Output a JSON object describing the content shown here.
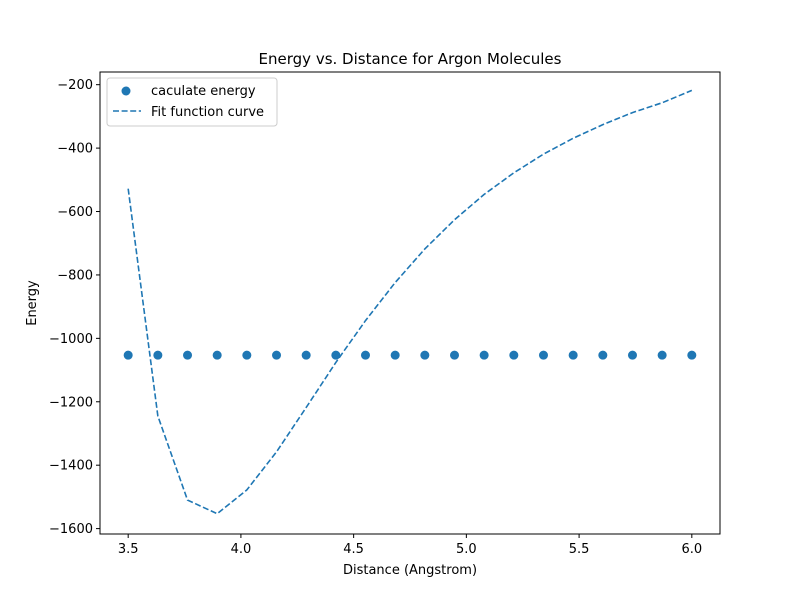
{
  "chart_data": {
    "type": "scatter",
    "title": "Energy vs. Distance for Argon Molecules",
    "xlabel": "Distance (Angstrom)",
    "ylabel": "Energy",
    "xlim": [
      3.375,
      6.125
    ],
    "ylim": [
      -1617,
      -160
    ],
    "xticks": [
      3.5,
      4.0,
      4.5,
      5.0,
      5.5,
      6.0
    ],
    "xtick_labels": [
      "3.5",
      "4.0",
      "4.5",
      "5.0",
      "5.5",
      "6.0"
    ],
    "yticks": [
      -1600,
      -1400,
      -1200,
      -1000,
      -800,
      -600,
      -400,
      -200
    ],
    "ytick_labels": [
      "−1600",
      "−1400",
      "−1200",
      "−1000",
      "−800",
      "−600",
      "−400",
      "−200"
    ],
    "grid": false,
    "legend": "top-left",
    "colors": {
      "series": "#1f77b4"
    },
    "series": [
      {
        "name": "caculate energy",
        "kind": "scatter",
        "x": [
          3.5,
          3.6316,
          3.7632,
          3.8947,
          4.0263,
          4.1579,
          4.2895,
          4.4211,
          4.5526,
          4.6842,
          4.8158,
          4.9474,
          5.0789,
          5.2105,
          5.3421,
          5.4737,
          5.6053,
          5.7368,
          5.8684,
          6.0
        ],
        "y": [
          -1053,
          -1053,
          -1053,
          -1053,
          -1053,
          -1053,
          -1053,
          -1053,
          -1053,
          -1053,
          -1053,
          -1053,
          -1053,
          -1053,
          -1053,
          -1053,
          -1053,
          -1053,
          -1053,
          -1053
        ]
      },
      {
        "name": "Fit function curve",
        "kind": "dashed-line",
        "x": [
          3.5,
          3.6316,
          3.7632,
          3.8947,
          4.0263,
          4.1579,
          4.2895,
          4.4211,
          4.5526,
          4.6842,
          4.8158,
          4.9474,
          5.0789,
          5.2105,
          5.3421,
          5.4737,
          5.6053,
          5.7368,
          5.8684,
          6.0
        ],
        "y": [
          -528,
          -1245,
          -1510,
          -1553,
          -1478,
          -1358,
          -1218,
          -1076,
          -944,
          -824,
          -718,
          -626,
          -546,
          -478,
          -419,
          -369,
          -326,
          -288,
          -257,
          -218
        ]
      }
    ]
  }
}
